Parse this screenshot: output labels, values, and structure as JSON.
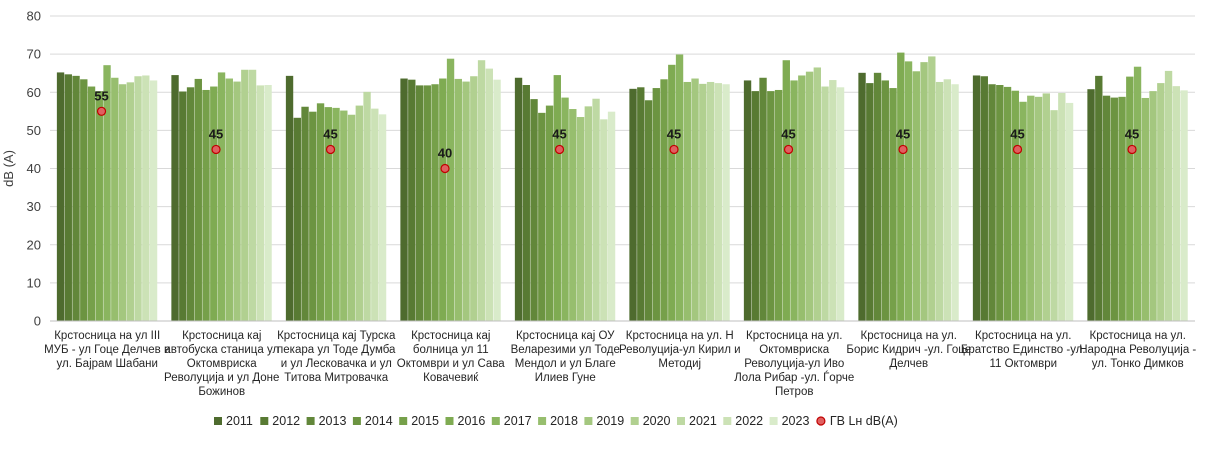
{
  "chart_data": {
    "type": "bar",
    "title": "",
    "xlabel": "",
    "ylabel": "dB (A)",
    "ylim": [
      0,
      80
    ],
    "yticks": [
      0,
      10,
      20,
      30,
      40,
      50,
      60,
      70,
      80
    ],
    "grid": true,
    "legend_position": "bottom",
    "categories": [
      "Крстосница на ул III МУБ - ул Гоце Делчев и ул. Бајрам Шабани",
      "Крстосница кај автобуска станица ул Октомвриска Револуција и ул Доне Божинов",
      "Крстосница кај Турска пекара ул Тоде Думба и ул Лесковачка и ул Титова Митровачка",
      "Крстосница кај болница ул 11 Октомври и ул Сава Ковачевиќ",
      "Крстосница кај ОУ Веларезими ул Тоде Мендол и ул Благе Илиев Гуне",
      "Крстосница на ул. Н Револуција-ул Кирил и Методиј",
      "Крстосница на ул. Октомвриска Револуција-ул Иво Лола Рибар -ул. Ѓорче Петров",
      "Крстосница на ул. Борис Кидрич -ул. Гоце Делчев",
      "Крстосница на ул. Братство Единство -ул. 11 Октомври",
      "Крстосница на ул. Народна Револуција - ул. Тонко Димков"
    ],
    "category_lines": [
      [
        "Крстосница на ул III",
        "МУБ - ул Гоце Делчев и",
        "ул. Бајрам Шабани"
      ],
      [
        "Крстосница кај",
        "автобуска станица ул",
        "Октомвриска",
        "Револуција и ул Доне",
        "Божинов"
      ],
      [
        "Крстосница кај Турска",
        "пекара ул Тоде Думба",
        "и ул Лесковачка и ул",
        "Титова Митровачка"
      ],
      [
        "Крстосница кај",
        "болница ул 11",
        "Октомври и ул Сава",
        "Ковачевиќ"
      ],
      [
        "Крстосница кај ОУ",
        "Веларезими ул Тоде",
        "Мендол и ул Благе",
        "Илиев Гуне"
      ],
      [
        "Крстосница на ул. Н",
        "Револуција-ул Кирил и",
        "Методиј"
      ],
      [
        "Крстосница на ул.",
        "Октомвриска",
        "Револуција-ул Иво",
        "Лола Рибар -ул. Ѓорче",
        "Петров"
      ],
      [
        "Крстосница на ул.",
        "Борис Кидрич -ул. Гоце",
        "Делчев"
      ],
      [
        "Крстосница на ул.",
        "Братство Единство -ул.",
        "11 Октомври"
      ],
      [
        "Крстосница на ул.",
        "Народна Револуција -",
        "ул. Тонко Димков"
      ]
    ],
    "series": [
      {
        "name": "2011",
        "color": "#4e6b2e",
        "values": [
          65.2,
          64.5,
          64.3,
          63.6,
          63.8,
          60.9,
          63.1,
          65.1,
          64.4,
          60.8
        ]
      },
      {
        "name": "2012",
        "color": "#587a33",
        "values": [
          64.7,
          60.2,
          53.3,
          63.3,
          61.9,
          61.3,
          60.3,
          62.4,
          64.2,
          64.3
        ]
      },
      {
        "name": "2013",
        "color": "#62873a",
        "values": [
          64.3,
          61.3,
          56.2,
          61.8,
          58.2,
          57.9,
          63.8,
          65.1,
          62.1,
          59.1
        ]
      },
      {
        "name": "2014",
        "color": "#6c9441",
        "values": [
          63.4,
          63.5,
          54.9,
          61.8,
          54.6,
          61.1,
          60.3,
          63.1,
          61.9,
          58.6
        ]
      },
      {
        "name": "2015",
        "color": "#76a04a",
        "values": [
          61.5,
          60.6,
          57.1,
          62.1,
          56.5,
          63.4,
          60.6,
          61.1,
          61.4,
          58.8
        ]
      },
      {
        "name": "2016",
        "color": "#7fab52",
        "values": [
          60.3,
          61.5,
          56.1,
          63.6,
          64.5,
          67.2,
          68.4,
          70.4,
          60.4,
          64.1
        ]
      },
      {
        "name": "2017",
        "color": "#8ab55f",
        "values": [
          67.1,
          65.2,
          55.9,
          68.8,
          58.6,
          69.9,
          63.1,
          68.1,
          57.5,
          66.7
        ]
      },
      {
        "name": "2018",
        "color": "#97be6e",
        "values": [
          63.8,
          63.6,
          55.2,
          63.5,
          55.6,
          62.7,
          64.4,
          65.5,
          59.1,
          58.5
        ]
      },
      {
        "name": "2019",
        "color": "#a4c77f",
        "values": [
          62.1,
          62.8,
          54.1,
          62.8,
          53.5,
          63.6,
          65.4,
          67.9,
          58.8,
          60.3
        ]
      },
      {
        "name": "2020",
        "color": "#b1d090",
        "values": [
          62.6,
          65.9,
          56.5,
          64.2,
          56.3,
          62.2,
          66.5,
          69.4,
          59.7,
          62.4
        ]
      },
      {
        "name": "2021",
        "color": "#bed9a3",
        "values": [
          64.2,
          65.9,
          60.1,
          68.4,
          58.3,
          62.7,
          61.5,
          62.7,
          55.3,
          65.6
        ]
      },
      {
        "name": "2022",
        "color": "#cce2b6",
        "values": [
          64.4,
          61.8,
          55.7,
          66.2,
          52.9,
          62.4,
          63.2,
          63.4,
          59.8,
          61.6
        ]
      },
      {
        "name": "2023",
        "color": "#d9ebca",
        "values": [
          63.1,
          61.9,
          54.2,
          63.3,
          54.9,
          62.1,
          61.3,
          62.1,
          57.2,
          60.5
        ]
      }
    ],
    "reference": {
      "name": "ГВ Lн dB(A)",
      "color": "#c00000",
      "marker_fill": "#e06060",
      "values": [
        55,
        45,
        45,
        40,
        45,
        45,
        45,
        45,
        45,
        45
      ],
      "labels": [
        "55",
        "45",
        "45",
        "40",
        "45",
        "45",
        "45",
        "45",
        "45",
        "45"
      ]
    }
  }
}
